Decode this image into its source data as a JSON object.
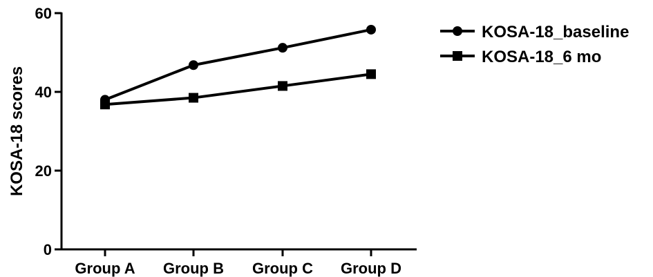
{
  "chart_data": {
    "type": "line",
    "ylabel": "KOSA-18 scores",
    "xlabel": "",
    "title": "",
    "ylim": [
      0,
      60
    ],
    "yticks": [
      "0",
      "20",
      "40",
      "60"
    ],
    "categories": [
      "Group A",
      "Group B",
      "Group C",
      "Group D"
    ],
    "series": [
      {
        "name": "KOSA-18_baseline",
        "values": [
          38,
          46.8,
          51.2,
          55.8
        ],
        "marker": "circle",
        "color": "#000000"
      },
      {
        "name": "KOSA-18_6 mo",
        "values": [
          36.8,
          38.5,
          41.5,
          44.5
        ],
        "marker": "square",
        "color": "#000000"
      }
    ],
    "grid": false,
    "legend_position": "top-right"
  }
}
